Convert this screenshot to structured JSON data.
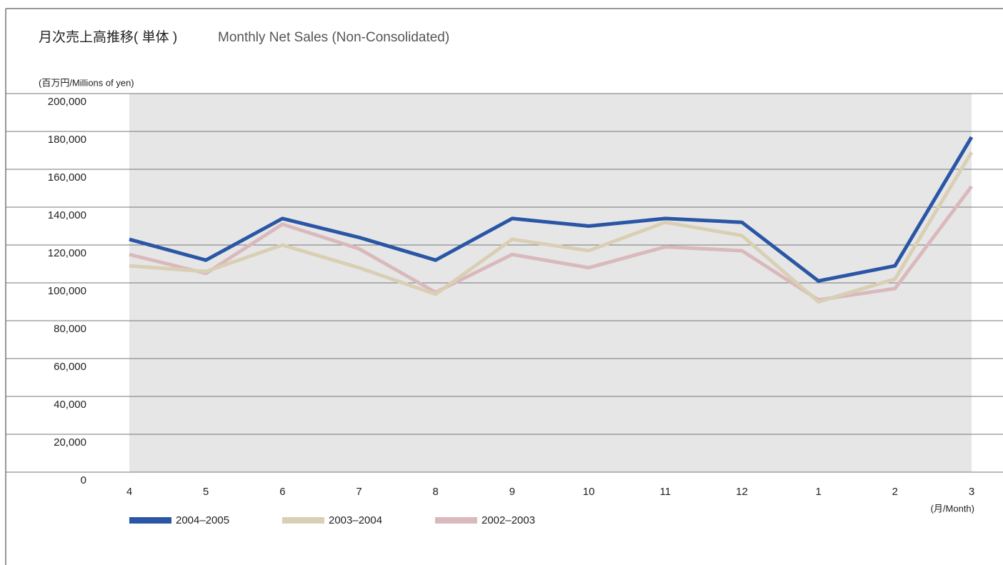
{
  "chart_data": {
    "type": "line",
    "title": "月次売上高推移( 単体 )",
    "subtitle": "Monthly Net Sales (Non-Consolidated)",
    "y_label": "(百万円/Millions of yen)",
    "x_label": "(月/Month)",
    "categories": [
      "4",
      "5",
      "6",
      "7",
      "8",
      "9",
      "10",
      "11",
      "12",
      "1",
      "2",
      "3"
    ],
    "series": [
      {
        "name": "2004–2005",
        "color": "#2a56a5",
        "values": [
          123000,
          112000,
          134000,
          124000,
          112000,
          134000,
          130000,
          134000,
          132000,
          101000,
          109000,
          177000
        ]
      },
      {
        "name": "2003–2004",
        "color": "#d8cfb4",
        "values": [
          109000,
          106000,
          120000,
          108000,
          94000,
          123000,
          117000,
          132000,
          125000,
          90000,
          102000,
          169000
        ]
      },
      {
        "name": "2002–2003",
        "color": "#dab9bd",
        "values": [
          115000,
          105000,
          131000,
          118000,
          95000,
          115000,
          108000,
          119000,
          117000,
          91000,
          97000,
          151000
        ]
      }
    ],
    "ylim": [
      0,
      200000
    ],
    "yticks": [
      0,
      {
        "value": 20000,
        "label": "20,000"
      },
      {
        "value": 40000,
        "label": "40,000"
      },
      {
        "value": 60000,
        "label": "60,000"
      },
      {
        "value": 80000,
        "label": "80,000"
      },
      {
        "value": 100000,
        "label": "100,000"
      },
      {
        "value": 120000,
        "label": "120,000"
      },
      {
        "value": 140000,
        "label": "140,000"
      },
      {
        "value": 160000,
        "label": "160,000"
      },
      {
        "value": 180000,
        "label": "180,000"
      },
      {
        "value": 200000,
        "label": "200,000"
      }
    ],
    "grid": true,
    "legend": "bottom"
  }
}
